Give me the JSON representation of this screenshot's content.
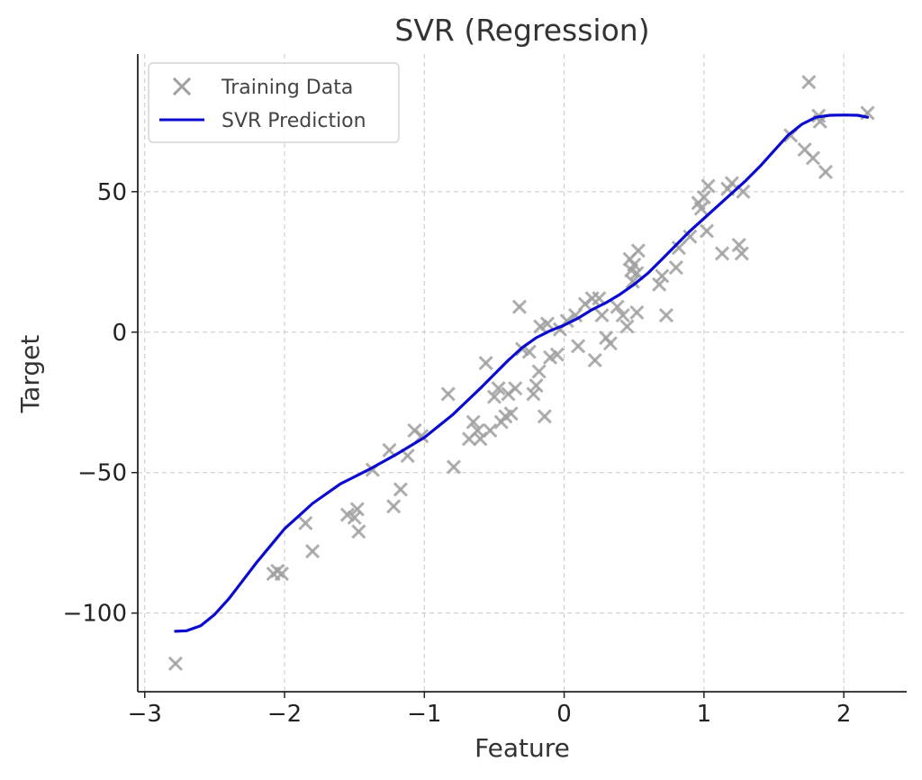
{
  "chart_data": {
    "type": "scatter",
    "title": "SVR (Regression)",
    "xlabel": "Feature",
    "ylabel": "Target",
    "xlim": [
      -3.05,
      2.45
    ],
    "ylim": [
      -128,
      99
    ],
    "x_ticks": [
      -3,
      -2,
      -1,
      0,
      1,
      2
    ],
    "x_tick_labels": [
      "−3",
      "−2",
      "−1",
      "0",
      "1",
      "2"
    ],
    "y_ticks": [
      -100,
      -50,
      0,
      50
    ],
    "y_tick_labels": [
      "−100",
      "−50",
      "0",
      "50"
    ],
    "grid": true,
    "legend_position": "top-left",
    "colors": {
      "training": "#a0a0a0",
      "prediction": "#0b0bd0"
    },
    "series": [
      {
        "name": "Training Data",
        "type": "scatter",
        "marker": "x",
        "points": [
          [
            -2.78,
            -118
          ],
          [
            -2.05,
            -85
          ],
          [
            -2.08,
            -86
          ],
          [
            -2.02,
            -86
          ],
          [
            -1.85,
            -68
          ],
          [
            -1.8,
            -78
          ],
          [
            -1.55,
            -65
          ],
          [
            -1.5,
            -66
          ],
          [
            -1.48,
            -63
          ],
          [
            -1.47,
            -71
          ],
          [
            -1.37,
            -49
          ],
          [
            -1.25,
            -42
          ],
          [
            -1.22,
            -62
          ],
          [
            -1.17,
            -56
          ],
          [
            -1.12,
            -44
          ],
          [
            -1.07,
            -35
          ],
          [
            -1.02,
            -37
          ],
          [
            -0.83,
            -22
          ],
          [
            -0.79,
            -48
          ],
          [
            -0.68,
            -38
          ],
          [
            -0.65,
            -32
          ],
          [
            -0.62,
            -35
          ],
          [
            -0.6,
            -38
          ],
          [
            -0.56,
            -11
          ],
          [
            -0.53,
            -35
          ],
          [
            -0.5,
            -23
          ],
          [
            -0.47,
            -20
          ],
          [
            -0.45,
            -32
          ],
          [
            -0.42,
            -30
          ],
          [
            -0.4,
            -22
          ],
          [
            -0.38,
            -29
          ],
          [
            -0.35,
            -20
          ],
          [
            -0.32,
            9
          ],
          [
            -0.3,
            -6
          ],
          [
            -0.25,
            -7
          ],
          [
            -0.22,
            -22
          ],
          [
            -0.2,
            -19
          ],
          [
            -0.18,
            -14
          ],
          [
            -0.17,
            2
          ],
          [
            -0.14,
            -30
          ],
          [
            -0.12,
            3
          ],
          [
            -0.1,
            -9
          ],
          [
            -0.05,
            -8
          ],
          [
            -0.03,
            1
          ],
          [
            0.02,
            4
          ],
          [
            0.08,
            6
          ],
          [
            0.1,
            -5
          ],
          [
            0.15,
            10
          ],
          [
            0.2,
            12
          ],
          [
            0.22,
            -10
          ],
          [
            0.25,
            12
          ],
          [
            0.27,
            6
          ],
          [
            0.3,
            -2
          ],
          [
            0.33,
            -4
          ],
          [
            0.38,
            9
          ],
          [
            0.42,
            6
          ],
          [
            0.45,
            2
          ],
          [
            0.47,
            26
          ],
          [
            0.48,
            22
          ],
          [
            0.49,
            18
          ],
          [
            0.5,
            24
          ],
          [
            0.52,
            21
          ],
          [
            0.53,
            29
          ],
          [
            0.52,
            7
          ],
          [
            0.68,
            17
          ],
          [
            0.7,
            20
          ],
          [
            0.73,
            6
          ],
          [
            0.8,
            23
          ],
          [
            0.82,
            30
          ],
          [
            0.9,
            34
          ],
          [
            0.96,
            46
          ],
          [
            0.98,
            44
          ],
          [
            1.0,
            48
          ],
          [
            1.02,
            36
          ],
          [
            1.03,
            52
          ],
          [
            1.13,
            28
          ],
          [
            1.17,
            51
          ],
          [
            1.2,
            53
          ],
          [
            1.25,
            31
          ],
          [
            1.27,
            28
          ],
          [
            1.28,
            50
          ],
          [
            1.62,
            70
          ],
          [
            1.72,
            65
          ],
          [
            1.75,
            89
          ],
          [
            1.78,
            62
          ],
          [
            1.82,
            77
          ],
          [
            1.83,
            75
          ],
          [
            1.87,
            57
          ],
          [
            2.17,
            78
          ]
        ]
      },
      {
        "name": "SVR Prediction",
        "type": "line",
        "points": [
          [
            -2.78,
            -106.5
          ],
          [
            -2.7,
            -106.3
          ],
          [
            -2.6,
            -104.5
          ],
          [
            -2.5,
            -100.5
          ],
          [
            -2.4,
            -95
          ],
          [
            -2.3,
            -88.5
          ],
          [
            -2.2,
            -82
          ],
          [
            -2.1,
            -76
          ],
          [
            -2.0,
            -70
          ],
          [
            -1.9,
            -65.5
          ],
          [
            -1.8,
            -61
          ],
          [
            -1.6,
            -54
          ],
          [
            -1.4,
            -49
          ],
          [
            -1.2,
            -43.5
          ],
          [
            -1.0,
            -37.5
          ],
          [
            -0.8,
            -29.5
          ],
          [
            -0.6,
            -20
          ],
          [
            -0.5,
            -15
          ],
          [
            -0.4,
            -10
          ],
          [
            -0.3,
            -5.5
          ],
          [
            -0.2,
            -2
          ],
          [
            -0.1,
            0.5
          ],
          [
            0.0,
            2.5
          ],
          [
            0.1,
            5
          ],
          [
            0.2,
            8
          ],
          [
            0.3,
            10.5
          ],
          [
            0.4,
            13.5
          ],
          [
            0.5,
            17
          ],
          [
            0.6,
            21
          ],
          [
            0.7,
            26
          ],
          [
            0.8,
            31
          ],
          [
            0.9,
            36
          ],
          [
            1.0,
            40.5
          ],
          [
            1.1,
            45
          ],
          [
            1.2,
            49.5
          ],
          [
            1.3,
            54
          ],
          [
            1.4,
            59
          ],
          [
            1.5,
            64.5
          ],
          [
            1.6,
            70
          ],
          [
            1.7,
            74
          ],
          [
            1.8,
            76.5
          ],
          [
            1.9,
            77.2
          ],
          [
            2.0,
            77.3
          ],
          [
            2.1,
            77.2
          ],
          [
            2.17,
            76.5
          ]
        ]
      }
    ]
  }
}
